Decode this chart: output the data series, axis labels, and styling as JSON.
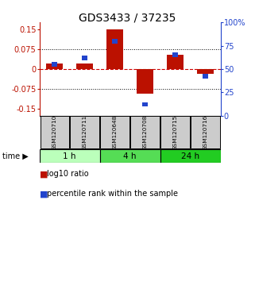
{
  "title": "GDS3433 / 37235",
  "samples": [
    "GSM120710",
    "GSM120711",
    "GSM120648",
    "GSM120708",
    "GSM120715",
    "GSM120716"
  ],
  "log10_ratio": [
    0.022,
    0.022,
    0.148,
    -0.092,
    0.055,
    -0.018
  ],
  "percentile_rank": [
    55,
    62,
    80,
    12,
    65,
    42
  ],
  "time_groups": [
    {
      "label": "1 h",
      "start": 0,
      "end": 2,
      "color": "#bbffbb"
    },
    {
      "label": "4 h",
      "start": 2,
      "end": 4,
      "color": "#55dd55"
    },
    {
      "label": "24 h",
      "start": 4,
      "end": 6,
      "color": "#22cc22"
    }
  ],
  "ylim_left": [
    -0.175,
    0.175
  ],
  "ylim_right": [
    0,
    100
  ],
  "yticks_left": [
    -0.15,
    -0.075,
    0,
    0.075,
    0.15
  ],
  "yticks_right": [
    0,
    25,
    50,
    75,
    100
  ],
  "ytick_labels_left": [
    "-0.15",
    "-0.075",
    "0",
    "0.075",
    "0.15"
  ],
  "ytick_labels_right": [
    "0",
    "25",
    "50",
    "75",
    "100%"
  ],
  "red_color": "#bb1100",
  "blue_color": "#2244cc",
  "zero_line_color": "#cc0000",
  "bg_color": "#ffffff",
  "sample_box_color": "#cccccc",
  "title_fontsize": 10,
  "tick_fontsize": 7,
  "legend_fontsize": 7
}
